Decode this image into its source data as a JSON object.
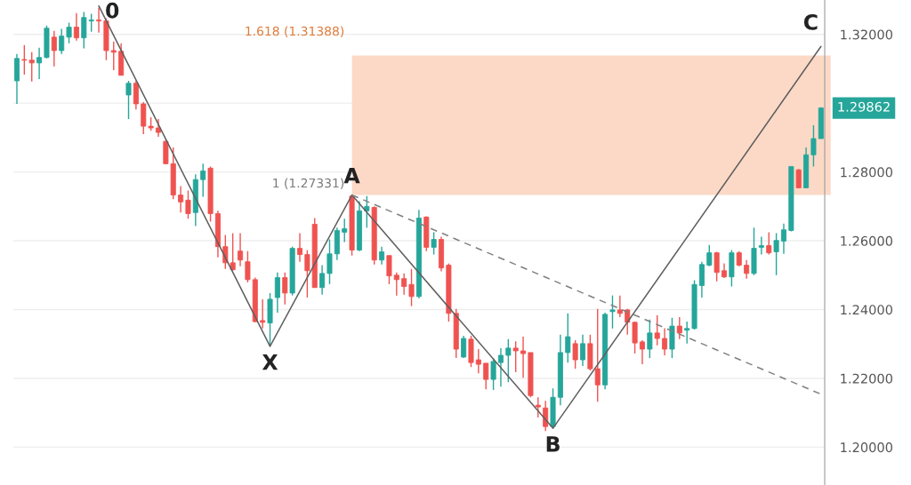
{
  "chart_data": {
    "type": "candlestick",
    "categories": [
      null,
      null,
      null,
      null,
      null,
      null,
      null,
      null,
      null,
      null,
      null,
      null,
      null,
      null,
      null,
      null,
      null,
      null,
      null,
      null,
      null,
      null,
      null,
      null,
      null,
      null,
      null,
      null,
      null,
      null,
      null,
      null,
      null,
      null,
      null,
      null,
      null,
      null,
      null,
      null,
      null,
      null,
      null,
      null,
      null,
      null,
      null,
      null,
      null,
      null,
      null,
      null,
      null,
      null,
      null,
      null,
      null,
      null,
      null,
      null,
      null,
      null,
      null,
      null,
      null,
      null,
      null,
      null,
      null,
      null,
      null,
      null,
      null,
      null,
      null,
      null,
      null,
      null,
      null,
      null,
      null,
      null,
      null,
      null,
      null,
      null,
      null,
      null,
      null,
      null,
      null,
      null,
      null,
      null,
      null,
      null,
      null,
      null,
      null,
      null,
      null,
      null,
      null,
      null,
      null,
      null,
      null,
      null,
      null
    ],
    "ohlc": [
      [
        1.3065,
        1.3143,
        1.2998,
        1.313
      ],
      [
        1.3127,
        1.3169,
        1.3083,
        1.3125
      ],
      [
        1.3125,
        1.3148,
        1.3063,
        1.3117
      ],
      [
        1.3117,
        1.3161,
        1.307,
        1.3133
      ],
      [
        1.3133,
        1.3226,
        1.313,
        1.3218
      ],
      [
        1.3192,
        1.321,
        1.3107,
        1.3153
      ],
      [
        1.3153,
        1.3216,
        1.3143,
        1.3195
      ],
      [
        1.3192,
        1.3234,
        1.3174,
        1.3221
      ],
      [
        1.3221,
        1.3262,
        1.3182,
        1.319
      ],
      [
        1.319,
        1.3265,
        1.3159,
        1.3249
      ],
      [
        1.3239,
        1.326,
        1.3208,
        1.3242
      ],
      [
        1.3242,
        1.3278,
        1.3205,
        1.3239
      ],
      [
        1.3239,
        1.3247,
        1.3125,
        1.3153
      ],
      [
        1.3153,
        1.3179,
        1.3096,
        1.3148
      ],
      [
        1.3151,
        1.3174,
        1.3081,
        1.3081
      ],
      [
        1.3024,
        1.3065,
        1.2954,
        1.3058
      ],
      [
        1.3058,
        1.3065,
        1.2982,
        1.2998
      ],
      [
        1.2998,
        1.3003,
        1.291,
        1.2933
      ],
      [
        1.2933,
        1.2959,
        1.292,
        1.2928
      ],
      [
        1.2928,
        1.2954,
        1.2902,
        1.2915
      ],
      [
        1.2889,
        1.2894,
        1.2822,
        1.2824
      ],
      [
        1.2824,
        1.2871,
        1.2721,
        1.2733
      ],
      [
        1.2733,
        1.2759,
        1.2682,
        1.2713
      ],
      [
        1.2718,
        1.2746,
        1.2664,
        1.2679
      ],
      [
        1.2682,
        1.2793,
        1.2643,
        1.2778
      ],
      [
        1.2778,
        1.2824,
        1.2728,
        1.2803
      ],
      [
        1.2811,
        1.2816,
        1.2656,
        1.2679
      ],
      [
        1.2679,
        1.2687,
        1.2552,
        1.2583
      ],
      [
        1.2583,
        1.2617,
        1.2518,
        1.2536
      ],
      [
        1.2536,
        1.2622,
        1.2513,
        1.2516
      ],
      [
        1.257,
        1.2622,
        1.2526,
        1.2544
      ],
      [
        1.2539,
        1.257,
        1.2479,
        1.2487
      ],
      [
        1.2487,
        1.2493,
        1.2363,
        1.2365
      ],
      [
        1.2368,
        1.243,
        1.2345,
        1.2363
      ],
      [
        1.2361,
        1.2448,
        1.2293,
        1.243
      ],
      [
        1.2435,
        1.2508,
        1.2391,
        1.2493
      ],
      [
        1.2493,
        1.2508,
        1.2415,
        1.2448
      ],
      [
        1.2448,
        1.2583,
        1.2441,
        1.2578
      ],
      [
        1.2578,
        1.2622,
        1.2539,
        1.256
      ],
      [
        1.256,
        1.2573,
        1.2435,
        1.2513
      ],
      [
        1.2648,
        1.2666,
        1.2464,
        1.2464
      ],
      [
        1.2464,
        1.2529,
        1.2443,
        1.2505
      ],
      [
        1.2505,
        1.2604,
        1.2474,
        1.2562
      ],
      [
        1.2562,
        1.2638,
        1.2544,
        1.263
      ],
      [
        1.2625,
        1.2664,
        1.2596,
        1.2635
      ],
      [
        1.273,
        1.2733,
        1.2557,
        1.2573
      ],
      [
        1.2573,
        1.2715,
        1.257,
        1.2687
      ],
      [
        1.2687,
        1.273,
        1.2638,
        1.27
      ],
      [
        1.2697,
        1.27,
        1.2531,
        1.2544
      ],
      [
        1.2544,
        1.2583,
        1.2531,
        1.2568
      ],
      [
        1.2557,
        1.2557,
        1.2474,
        1.2498
      ],
      [
        1.25,
        1.2508,
        1.2441,
        1.2487
      ],
      [
        1.249,
        1.2505,
        1.2443,
        1.2467
      ],
      [
        1.2473,
        1.2518,
        1.241,
        1.2438
      ],
      [
        1.2438,
        1.269,
        1.2433,
        1.2666
      ],
      [
        1.2669,
        1.2671,
        1.257,
        1.2581
      ],
      [
        1.2581,
        1.2625,
        1.256,
        1.2604
      ],
      [
        1.2604,
        1.2612,
        1.2511,
        1.2521
      ],
      [
        1.2529,
        1.2534,
        1.2365,
        1.2389
      ],
      [
        1.2389,
        1.2402,
        1.2259,
        1.2285
      ],
      [
        1.2262,
        1.2324,
        1.2259,
        1.2316
      ],
      [
        1.2314,
        1.2324,
        1.2233,
        1.2246
      ],
      [
        1.2254,
        1.2285,
        1.2215,
        1.2241
      ],
      [
        1.2244,
        1.2244,
        1.2168,
        1.2197
      ],
      [
        1.2197,
        1.2259,
        1.2166,
        1.2249
      ],
      [
        1.2246,
        1.2288,
        1.2176,
        1.2267
      ],
      [
        1.2267,
        1.2314,
        1.2189,
        1.2288
      ],
      [
        1.2288,
        1.2308,
        1.2218,
        1.228
      ],
      [
        1.228,
        1.2321,
        1.2202,
        1.2272
      ],
      [
        1.2275,
        1.2275,
        1.2145,
        1.215
      ],
      [
        1.2122,
        1.2145,
        1.2086,
        1.2117
      ],
      [
        1.2114,
        1.2135,
        1.2047,
        1.206
      ],
      [
        1.206,
        1.2171,
        1.2054,
        1.2145
      ],
      [
        1.2145,
        1.2327,
        1.2122,
        1.2275
      ],
      [
        1.2275,
        1.2389,
        1.2246,
        1.2321
      ],
      [
        1.2301,
        1.2311,
        1.2228,
        1.2254
      ],
      [
        1.2254,
        1.2327,
        1.2236,
        1.2301
      ],
      [
        1.2301,
        1.2327,
        1.2223,
        1.2228
      ],
      [
        1.2228,
        1.2402,
        1.2132,
        1.2181
      ],
      [
        1.2181,
        1.2391,
        1.2168,
        1.2386
      ],
      [
        1.2394,
        1.2441,
        1.2345,
        1.2399
      ],
      [
        1.2399,
        1.2441,
        1.2378,
        1.2389
      ],
      [
        1.2399,
        1.2402,
        1.2327,
        1.2363
      ],
      [
        1.2363,
        1.2365,
        1.2272,
        1.2303
      ],
      [
        1.2306,
        1.2311,
        1.2241,
        1.2285
      ],
      [
        1.2285,
        1.2371,
        1.2259,
        1.2332
      ],
      [
        1.2332,
        1.2383,
        1.2296,
        1.2316
      ],
      [
        1.2316,
        1.2346,
        1.2267,
        1.2285
      ],
      [
        1.2285,
        1.2376,
        1.2259,
        1.2352
      ],
      [
        1.2352,
        1.2378,
        1.2314,
        1.2332
      ],
      [
        1.234,
        1.2365,
        1.2301,
        1.2345
      ],
      [
        1.2345,
        1.2485,
        1.2342,
        1.2473
      ],
      [
        1.247,
        1.2539,
        1.2435,
        1.2531
      ],
      [
        1.2529,
        1.2588,
        1.2526,
        1.2565
      ],
      [
        1.2565,
        1.2568,
        1.2482,
        1.2508
      ],
      [
        1.2513,
        1.2534,
        1.2492,
        1.2495
      ],
      [
        1.2495,
        1.2573,
        1.2467,
        1.2565
      ],
      [
        1.2565,
        1.257,
        1.2526,
        1.2529
      ],
      [
        1.2529,
        1.2544,
        1.249,
        1.2505
      ],
      [
        1.2505,
        1.2638,
        1.25,
        1.2578
      ],
      [
        1.2581,
        1.2612,
        1.256,
        1.2586
      ],
      [
        1.2586,
        1.2625,
        1.256,
        1.2565
      ],
      [
        1.2568,
        1.2622,
        1.25,
        1.2601
      ],
      [
        1.2599,
        1.265,
        1.2562,
        1.2632
      ],
      [
        1.263,
        1.2816,
        1.2627,
        1.2816
      ],
      [
        1.2806,
        1.2809,
        1.2754,
        1.2754
      ],
      [
        1.2754,
        1.2871,
        1.2754,
        1.285
      ],
      [
        1.285,
        1.2936,
        1.2816,
        1.2897
      ],
      [
        1.2897,
        1.2988,
        1.2897,
        1.29862
      ]
    ],
    "series": [
      {
        "type": "line",
        "color": "#5f5f5f",
        "values": [
          null,
          null,
          null,
          null,
          null,
          null,
          null,
          null,
          null,
          null,
          null,
          1.3283,
          null,
          null,
          null,
          null,
          null,
          null,
          null,
          null,
          null,
          null,
          null,
          null,
          null,
          null,
          null,
          null,
          null,
          null,
          null,
          null,
          null,
          null,
          1.2293,
          null,
          null,
          null,
          null,
          null,
          null,
          null,
          null,
          null,
          null,
          1.27331,
          null,
          null,
          null,
          null,
          null,
          null,
          null,
          null,
          null,
          null,
          null,
          null,
          null,
          null,
          null,
          null,
          null,
          null,
          null,
          null,
          null,
          null,
          null,
          null,
          null,
          null,
          1.2055,
          null,
          null,
          null,
          null,
          null,
          null,
          null,
          null,
          null,
          null,
          null,
          null,
          null,
          null,
          null,
          null,
          null,
          null,
          null,
          null,
          null,
          null,
          null,
          null,
          null,
          null,
          null,
          null,
          null,
          null,
          null,
          null,
          null,
          null,
          null,
          1.3165
        ]
      },
      {
        "type": "line",
        "color": "#808080",
        "line_style": "dashed",
        "values": [
          null,
          null,
          null,
          null,
          null,
          null,
          null,
          null,
          null,
          null,
          null,
          null,
          null,
          null,
          null,
          null,
          null,
          null,
          null,
          null,
          null,
          null,
          null,
          null,
          null,
          null,
          null,
          null,
          null,
          null,
          null,
          null,
          null,
          null,
          null,
          null,
          null,
          null,
          null,
          null,
          null,
          null,
          null,
          null,
          null,
          1.27331,
          null,
          null,
          null,
          null,
          null,
          null,
          null,
          null,
          null,
          null,
          null,
          null,
          null,
          null,
          null,
          null,
          null,
          null,
          null,
          null,
          null,
          null,
          null,
          null,
          null,
          null,
          null,
          null,
          null,
          null,
          null,
          null,
          null,
          null,
          null,
          null,
          null,
          null,
          null,
          null,
          null,
          null,
          null,
          null,
          null,
          null,
          null,
          null,
          null,
          null,
          null,
          null,
          null,
          null,
          null,
          null,
          null,
          null,
          null,
          null,
          null,
          null,
          1.2154
        ]
      }
    ],
    "bands": [
      {
        "axis": "y",
        "from": 1.27331,
        "to": 1.31388,
        "color": "#fcd9c6"
      }
    ],
    "annotations": [
      "0",
      "X",
      "A",
      "B",
      "C",
      "1.618 (1.31388)",
      "1 (1.27331)",
      "1.29862"
    ],
    "ylim": [
      1.189,
      1.33
    ],
    "yticks": [
      {
        "value": 1.2,
        "label": "1.20000"
      },
      {
        "value": 1.22,
        "label": "1.22000"
      },
      {
        "value": 1.24,
        "label": "1.24000"
      },
      {
        "value": 1.26,
        "label": "1.26000"
      },
      {
        "value": 1.28,
        "label": "1.28000"
      },
      {
        "value": 1.3,
        "label": null
      },
      {
        "value": 1.32,
        "label": "1.32000"
      }
    ],
    "grid": "y"
  }
}
